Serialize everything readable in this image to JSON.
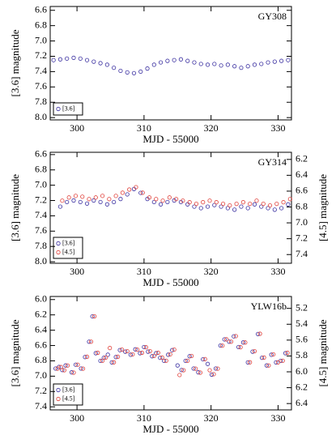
{
  "chart_data": [
    {
      "type": "scatter",
      "title": "GY308",
      "x_label": "MJD - 55000",
      "y_label": "[3.6] magnitude",
      "legend": "lower left",
      "xlim": [
        296,
        332
      ],
      "xticks": [
        300,
        310,
        320,
        330
      ],
      "ylim": [
        8.03,
        6.55
      ],
      "yticks": [
        6.6,
        6.8,
        {
          "value": 7,
          "label": "7.0"
        },
        7.2,
        7.4,
        7.6,
        7.8,
        {
          "value": 8,
          "label": "8.0"
        }
      ],
      "series": [
        {
          "name": "[3.6]",
          "color": "#3a2fa0",
          "x": [
            296.5,
            297.5,
            298.5,
            299.5,
            300.5,
            301.5,
            302.5,
            303.5,
            304.5,
            305.5,
            306.5,
            307.5,
            308.5,
            309.5,
            310.5,
            311.5,
            312.5,
            313.5,
            314.5,
            315.5,
            316.5,
            317.5,
            318.5,
            319.5,
            320.5,
            321.5,
            322.5,
            323.5,
            324.5,
            325.5,
            326.5,
            327.5,
            328.5,
            329.5,
            330.5,
            331.5
          ],
          "values": [
            7.25,
            7.24,
            7.23,
            7.22,
            7.23,
            7.25,
            7.27,
            7.29,
            7.31,
            7.35,
            7.39,
            7.41,
            7.42,
            7.4,
            7.36,
            7.31,
            7.28,
            7.26,
            7.25,
            7.24,
            7.26,
            7.28,
            7.3,
            7.31,
            7.3,
            7.32,
            7.31,
            7.33,
            7.35,
            7.33,
            7.31,
            7.3,
            7.28,
            7.27,
            7.26,
            7.25
          ]
        }
      ]
    },
    {
      "type": "scatter",
      "title": "GY314",
      "x_label": "MJD - 55000",
      "y_label": "[3.6] magnitude",
      "y2_label": "[4.5] magnitude",
      "legend": "lower left",
      "xlim": [
        296,
        332
      ],
      "xticks": [
        300,
        310,
        320,
        330
      ],
      "ylim": [
        8.02,
        6.57
      ],
      "yticks": [
        6.6,
        6.8,
        {
          "value": 7,
          "label": "7.0"
        },
        7.2,
        7.4,
        7.6,
        7.8,
        {
          "value": 8,
          "label": "8.0"
        }
      ],
      "y2lim": [
        7.51,
        6.11
      ],
      "y2ticks": [
        6.2,
        6.4,
        6.6,
        6.8,
        {
          "value": 7,
          "label": "7.0"
        },
        7.2,
        7.4
      ],
      "series": [
        {
          "name": "[3.6]",
          "color": "#3a2fa0",
          "x": [
            297.5,
            298.5,
            299.5,
            300.5,
            301.5,
            302.5,
            303.5,
            304.5,
            305.5,
            306.5,
            307.5,
            308.5,
            309.5,
            310.5,
            311.5,
            312.5,
            313.5,
            314.5,
            315.5,
            316.5,
            317.5,
            318.5,
            319.5,
            320.5,
            321.5,
            322.5,
            323.5,
            324.5,
            325.5,
            326.5,
            327.5,
            328.5,
            329.5,
            330.5,
            331.5
          ],
          "values": [
            7.28,
            7.22,
            7.2,
            7.22,
            7.24,
            7.2,
            7.22,
            7.25,
            7.22,
            7.18,
            7.12,
            7.05,
            7.1,
            7.18,
            7.22,
            7.25,
            7.22,
            7.2,
            7.22,
            7.25,
            7.28,
            7.3,
            7.28,
            7.26,
            7.28,
            7.3,
            7.32,
            7.28,
            7.3,
            7.25,
            7.28,
            7.3,
            7.32,
            7.3,
            7.25
          ]
        },
        {
          "name": "[4.5]",
          "color": "#e0403a",
          "axis": "y2",
          "x": [
            297.8,
            298.8,
            299.8,
            300.8,
            301.8,
            302.8,
            303.8,
            304.8,
            305.8,
            306.8,
            307.8,
            308.8,
            309.8,
            310.8,
            311.8,
            312.8,
            313.8,
            314.8,
            315.8,
            316.8,
            317.8,
            318.8,
            319.8,
            320.8,
            321.8,
            322.8,
            323.8,
            324.8,
            325.8,
            326.8,
            327.8,
            328.8,
            329.8,
            330.8,
            331.8
          ],
          "values": [
            6.72,
            6.68,
            6.66,
            6.67,
            6.7,
            6.68,
            6.66,
            6.7,
            6.66,
            6.62,
            6.58,
            6.55,
            6.62,
            6.68,
            6.7,
            6.72,
            6.68,
            6.7,
            6.72,
            6.74,
            6.76,
            6.74,
            6.72,
            6.74,
            6.76,
            6.78,
            6.76,
            6.74,
            6.76,
            6.72,
            6.76,
            6.78,
            6.76,
            6.74,
            6.7
          ]
        }
      ]
    },
    {
      "type": "scatter",
      "title": "YLW16b",
      "x_label": "MJD - 55000",
      "y_label": "[3.6] magnitude",
      "y2_label": "[4.5] magnitude",
      "legend": "lower left",
      "xlim": [
        296,
        332
      ],
      "xticks": [
        300,
        310,
        320,
        330
      ],
      "ylim": [
        7.44,
        5.96
      ],
      "yticks": [
        {
          "value": 6,
          "label": "6.0"
        },
        6.2,
        6.4,
        6.6,
        6.8,
        {
          "value": 7,
          "label": "7.0"
        },
        7.2,
        7.4
      ],
      "y2lim": [
        6.48,
        5.05
      ],
      "y2ticks": [
        5.2,
        5.4,
        5.6,
        5.8,
        {
          "value": 6,
          "label": "6.0"
        },
        6.2,
        6.4
      ],
      "series": [
        {
          "name": "[3.6]",
          "color": "#3a2fa0",
          "x": [
            296.8,
            297.3,
            297.8,
            298.3,
            299.2,
            299.8,
            300.6,
            301.2,
            301.8,
            302.3,
            302.8,
            303.5,
            304,
            304.6,
            305.2,
            305.8,
            306.4,
            307.2,
            308,
            308.7,
            309.4,
            310,
            310.6,
            311.2,
            311.8,
            312.4,
            313,
            313.6,
            314.2,
            315,
            315.6,
            316.2,
            316.8,
            317.4,
            318.1,
            318.8,
            319.5,
            320.1,
            320.7,
            321.4,
            322,
            322.7,
            323.4,
            324.1,
            324.8,
            325.5,
            326.2,
            327,
            327.6,
            328.3,
            329,
            329.7,
            330.4,
            331.1
          ],
          "values": [
            6.9,
            6.88,
            6.92,
            6.86,
            6.95,
            6.85,
            6.9,
            6.75,
            6.55,
            6.22,
            6.7,
            6.8,
            6.76,
            6.72,
            6.82,
            6.75,
            6.66,
            6.68,
            6.72,
            6.65,
            6.7,
            6.62,
            6.68,
            6.74,
            6.7,
            6.76,
            6.8,
            6.72,
            6.66,
            6.86,
            6.92,
            6.8,
            6.74,
            6.9,
            6.95,
            6.78,
            6.84,
            6.98,
            6.9,
            6.6,
            6.52,
            6.55,
            6.48,
            6.62,
            6.56,
            6.82,
            6.68,
            6.45,
            6.76,
            6.86,
            6.72,
            6.82,
            6.8,
            6.7
          ]
        },
        {
          "name": "[4.5]",
          "color": "#e0403a",
          "axis": "y2",
          "x": [
            297.1,
            297.6,
            298.1,
            298.6,
            299.5,
            300.1,
            300.9,
            301.5,
            302.1,
            302.6,
            303.1,
            303.8,
            304.3,
            304.9,
            305.5,
            306.1,
            306.7,
            307.5,
            308.3,
            309,
            309.7,
            310.3,
            310.9,
            311.5,
            312.1,
            312.7,
            313.3,
            313.9,
            314.5,
            315.3,
            315.9,
            316.5,
            317.1,
            317.7,
            318.4,
            319.1,
            319.8,
            320.4,
            321,
            321.7,
            322.3,
            323,
            323.7,
            324.4,
            325.1,
            325.8,
            326.5,
            327.3,
            327.9,
            328.6,
            329.3,
            330,
            330.7,
            331.4
          ],
          "values": [
            5.96,
            5.94,
            5.98,
            5.92,
            6.01,
            5.91,
            5.96,
            5.81,
            5.62,
            5.3,
            5.76,
            5.86,
            5.82,
            5.7,
            5.88,
            5.81,
            5.72,
            5.74,
            5.78,
            5.72,
            5.76,
            5.69,
            5.74,
            5.8,
            5.76,
            5.82,
            5.86,
            5.78,
            5.72,
            6.04,
            5.98,
            5.86,
            5.8,
            5.96,
            6.01,
            5.84,
            5.98,
            6.03,
            5.96,
            5.67,
            5.59,
            5.62,
            5.55,
            5.69,
            5.63,
            5.88,
            5.74,
            5.52,
            5.82,
            5.92,
            5.78,
            5.88,
            5.86,
            5.76
          ]
        }
      ]
    }
  ]
}
